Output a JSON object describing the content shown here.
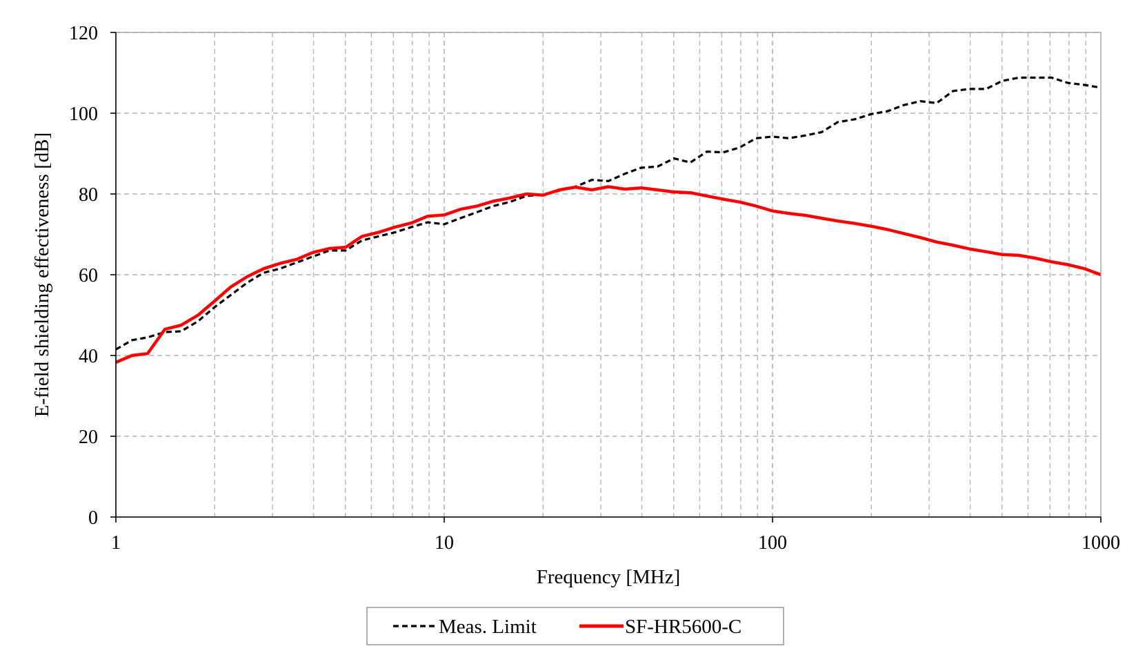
{
  "chart_data": {
    "type": "line",
    "title": "",
    "xlabel": "Frequency [MHz]",
    "ylabel": "E-field shielding effectiveness [dB]",
    "x_scale": "log",
    "xlim": [
      1,
      1000
    ],
    "ylim": [
      0,
      120
    ],
    "x_ticks": [
      1,
      10,
      100,
      1000
    ],
    "x_tick_labels": [
      "1",
      "10",
      "100",
      "1000"
    ],
    "y_ticks": [
      0,
      20,
      40,
      60,
      80,
      100,
      120
    ],
    "y_tick_labels": [
      "0",
      "20",
      "40",
      "60",
      "80",
      "100",
      "120"
    ],
    "grid": "on (dashed, major and minor)",
    "legend_position": "bottom-center",
    "series": [
      {
        "name": "Meas. Limit",
        "color": "#000000",
        "style": "dashed",
        "points": [
          [
            1,
            41.5
          ],
          [
            1.12,
            43.8
          ],
          [
            1.25,
            44.5
          ],
          [
            1.41,
            45.8
          ],
          [
            1.58,
            46.0
          ],
          [
            1.78,
            48.5
          ],
          [
            2,
            52.0
          ],
          [
            2.24,
            55.0
          ],
          [
            2.51,
            58.0
          ],
          [
            2.82,
            60.5
          ],
          [
            3.16,
            61.5
          ],
          [
            3.55,
            63.0
          ],
          [
            3.98,
            64.5
          ],
          [
            4.47,
            66.0
          ],
          [
            5.01,
            66.0
          ],
          [
            5.62,
            68.5
          ],
          [
            6.31,
            69.5
          ],
          [
            7.08,
            70.5
          ],
          [
            7.94,
            71.8
          ],
          [
            8.91,
            73.0
          ],
          [
            10,
            72.5
          ],
          [
            11.2,
            74.0
          ],
          [
            12.6,
            75.5
          ],
          [
            14.1,
            77.0
          ],
          [
            15.8,
            78.0
          ],
          [
            17.8,
            79.5
          ],
          [
            20,
            79.8
          ],
          [
            22.4,
            80.8
          ],
          [
            25.1,
            81.8
          ],
          [
            28.2,
            83.5
          ],
          [
            31.6,
            83.2
          ],
          [
            35.5,
            85.0
          ],
          [
            39.8,
            86.5
          ],
          [
            44.7,
            86.8
          ],
          [
            50.1,
            88.8
          ],
          [
            56.2,
            87.8
          ],
          [
            63.1,
            90.5
          ],
          [
            70.8,
            90.3
          ],
          [
            79.4,
            91.5
          ],
          [
            89.1,
            93.8
          ],
          [
            100,
            94.2
          ],
          [
            112,
            93.8
          ],
          [
            126,
            94.5
          ],
          [
            141,
            95.3
          ],
          [
            158,
            97.8
          ],
          [
            178,
            98.5
          ],
          [
            200,
            99.8
          ],
          [
            224,
            100.5
          ],
          [
            251,
            102.0
          ],
          [
            282,
            103.0
          ],
          [
            316,
            102.5
          ],
          [
            355,
            105.5
          ],
          [
            398,
            106.0
          ],
          [
            447,
            106.0
          ],
          [
            501,
            108.0
          ],
          [
            562,
            108.8
          ],
          [
            631,
            108.8
          ],
          [
            708,
            108.8
          ],
          [
            794,
            107.5
          ],
          [
            891,
            107.0
          ],
          [
            1000,
            106.3
          ]
        ]
      },
      {
        "name": "SF-HR5600-C",
        "color": "#ff0000",
        "style": "solid",
        "points": [
          [
            1,
            38.3
          ],
          [
            1.12,
            40.0
          ],
          [
            1.25,
            40.5
          ],
          [
            1.41,
            46.5
          ],
          [
            1.58,
            47.5
          ],
          [
            1.78,
            50.0
          ],
          [
            2,
            53.5
          ],
          [
            2.24,
            57.0
          ],
          [
            2.51,
            59.5
          ],
          [
            2.82,
            61.5
          ],
          [
            3.16,
            62.8
          ],
          [
            3.55,
            63.8
          ],
          [
            3.98,
            65.5
          ],
          [
            4.47,
            66.5
          ],
          [
            5.01,
            66.8
          ],
          [
            5.62,
            69.5
          ],
          [
            6.31,
            70.5
          ],
          [
            7.08,
            71.8
          ],
          [
            7.94,
            72.8
          ],
          [
            8.91,
            74.5
          ],
          [
            10,
            74.8
          ],
          [
            11.2,
            76.2
          ],
          [
            12.6,
            77.0
          ],
          [
            14.1,
            78.2
          ],
          [
            15.8,
            79.0
          ],
          [
            17.8,
            80.0
          ],
          [
            20,
            79.7
          ],
          [
            22.4,
            81.0
          ],
          [
            25.1,
            81.7
          ],
          [
            28.2,
            81.0
          ],
          [
            31.6,
            81.8
          ],
          [
            35.5,
            81.2
          ],
          [
            39.8,
            81.5
          ],
          [
            44.7,
            81.0
          ],
          [
            50.1,
            80.5
          ],
          [
            56.2,
            80.3
          ],
          [
            63.1,
            79.5
          ],
          [
            70.8,
            78.7
          ],
          [
            79.4,
            78.0
          ],
          [
            89.1,
            77.0
          ],
          [
            100,
            75.8
          ],
          [
            112,
            75.2
          ],
          [
            126,
            74.7
          ],
          [
            141,
            74.0
          ],
          [
            158,
            73.3
          ],
          [
            178,
            72.7
          ],
          [
            200,
            72.0
          ],
          [
            224,
            71.2
          ],
          [
            251,
            70.2
          ],
          [
            282,
            69.2
          ],
          [
            316,
            68.1
          ],
          [
            355,
            67.3
          ],
          [
            398,
            66.4
          ],
          [
            447,
            65.7
          ],
          [
            501,
            65.0
          ],
          [
            562,
            64.8
          ],
          [
            631,
            64.1
          ],
          [
            708,
            63.2
          ],
          [
            794,
            62.5
          ],
          [
            891,
            61.5
          ],
          [
            1000,
            60.0
          ]
        ]
      }
    ]
  }
}
